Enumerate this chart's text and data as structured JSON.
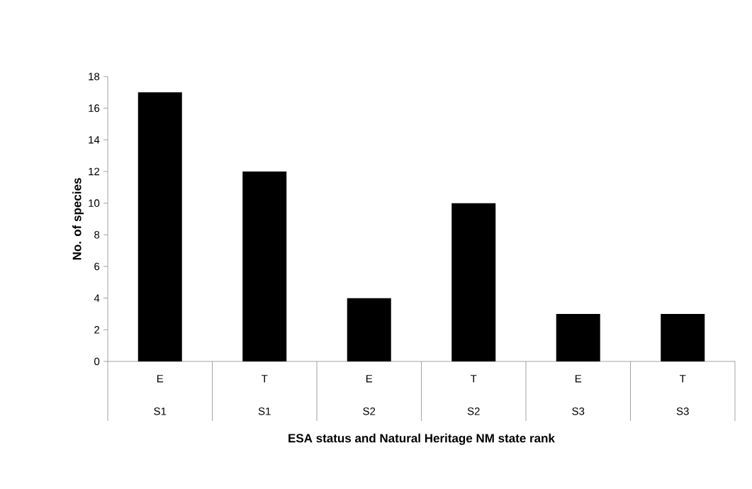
{
  "chart_data": {
    "type": "bar",
    "xlabel": "ESA status and Natural Heritage NM state rank",
    "ylabel": "No. of species",
    "categories": [
      "E",
      "T",
      "E",
      "T",
      "E",
      "T"
    ],
    "annotations": [
      "S1",
      "S1",
      "S2",
      "S2",
      "S3",
      "S3"
    ],
    "values": [
      17,
      12,
      4,
      10,
      3,
      3
    ],
    "color": "#000000",
    "ylim": [
      0,
      18
    ],
    "yticks": [
      0,
      2,
      4,
      6,
      8,
      10,
      12,
      14,
      16,
      18
    ],
    "grid": false
  }
}
